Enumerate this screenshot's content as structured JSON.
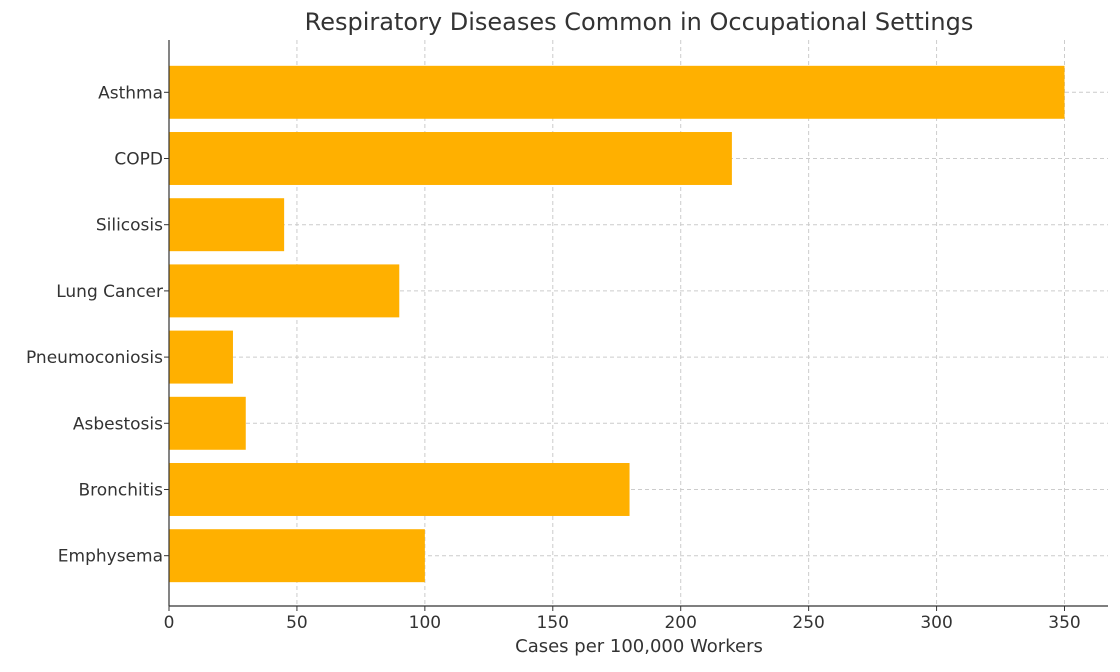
{
  "chart_data": {
    "type": "bar",
    "orientation": "horizontal",
    "title": "Respiratory Diseases Common in Occupational Settings",
    "xlabel": "Cases per 100,000 Workers",
    "ylabel": "",
    "categories": [
      "Asthma",
      "COPD",
      "Silicosis",
      "Lung Cancer",
      "Pneumoconiosis",
      "Asbestosis",
      "Bronchitis",
      "Emphysema"
    ],
    "values": [
      350,
      220,
      45,
      90,
      25,
      30,
      180,
      100
    ],
    "xlim": [
      0,
      367
    ],
    "xticks": [
      0,
      50,
      100,
      150,
      200,
      250,
      300,
      350
    ],
    "grid": true,
    "bar_color": "#FFB000"
  }
}
